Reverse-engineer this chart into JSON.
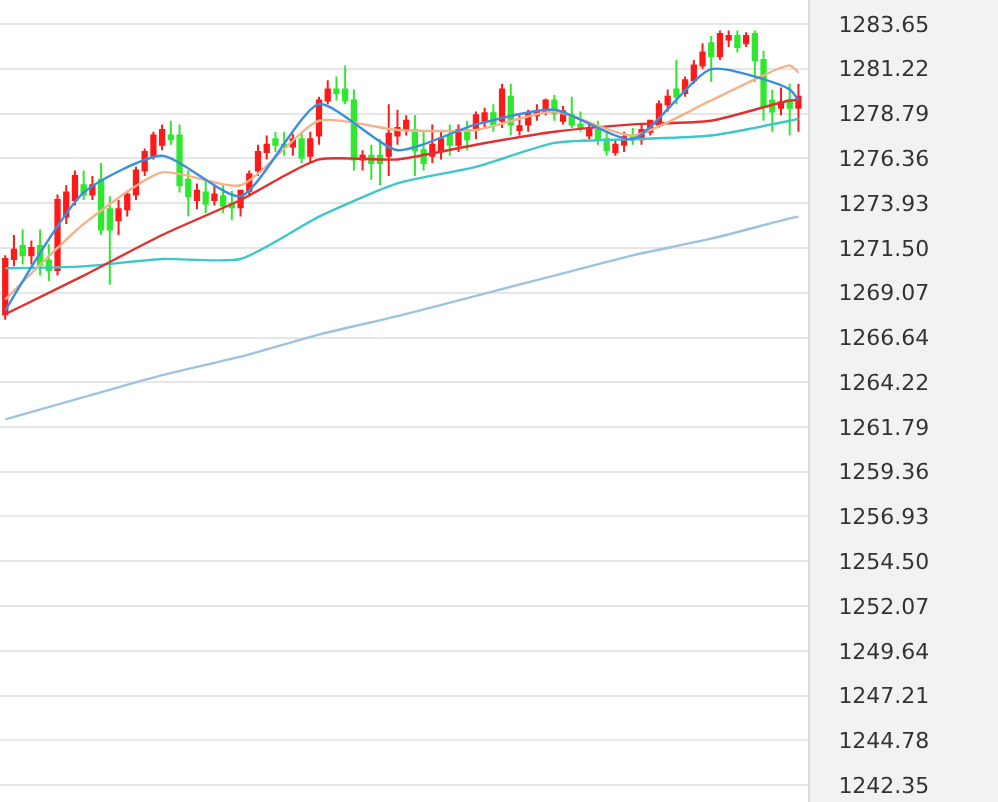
{
  "chart_data": {
    "type": "candlestick",
    "categories": [
      null,
      null,
      null,
      null,
      null,
      null,
      null,
      null,
      null,
      null,
      null,
      null,
      null,
      null,
      null,
      null,
      null,
      null,
      null,
      null,
      null,
      null,
      null,
      null,
      null,
      null,
      null,
      null,
      null,
      null,
      null,
      null,
      null,
      null,
      null,
      null,
      null,
      null,
      null,
      null,
      null,
      null,
      null,
      null,
      null,
      null,
      null,
      null,
      null,
      null,
      null,
      null,
      null,
      null,
      null,
      null,
      null,
      null,
      null,
      null,
      null,
      null,
      null,
      null,
      null,
      null,
      null,
      null,
      null,
      null,
      null,
      null,
      null,
      null,
      null,
      null,
      null,
      null,
      null,
      null,
      null,
      null,
      null,
      null,
      null,
      null,
      null,
      null,
      null,
      null,
      null,
      null
    ],
    "ohlc": [
      [
        1267.9,
        1271.1,
        1267.6,
        1270.9
      ],
      [
        1270.9,
        1272.2,
        1270.5,
        1271.4
      ],
      [
        1271.6,
        1272.5,
        1270.6,
        1271.1
      ],
      [
        1271.1,
        1271.9,
        1270.6,
        1271.5
      ],
      [
        1271.6,
        1272.5,
        1270.0,
        1270.6
      ],
      [
        1270.8,
        1271.7,
        1269.7,
        1270.3
      ],
      [
        1270.3,
        1274.4,
        1270.0,
        1274.1
      ],
      [
        1273.2,
        1274.9,
        1272.8,
        1274.5
      ],
      [
        1274.1,
        1275.7,
        1273.8,
        1275.4
      ],
      [
        1274.9,
        1275.7,
        1274.1,
        1274.4
      ],
      [
        1274.4,
        1275.4,
        1274.1,
        1274.9
      ],
      [
        1275.2,
        1276.1,
        1272.2,
        1272.5
      ],
      [
        1273.6,
        1274.3,
        1269.5,
        1272.5
      ],
      [
        1273.0,
        1274.1,
        1272.2,
        1273.6
      ],
      [
        1273.6,
        1274.6,
        1273.2,
        1274.4
      ],
      [
        1274.4,
        1275.9,
        1274.1,
        1275.7
      ],
      [
        1275.7,
        1276.9,
        1275.4,
        1276.7
      ],
      [
        1276.5,
        1277.8,
        1276.3,
        1277.6
      ],
      [
        1277.1,
        1278.2,
        1276.8,
        1277.9
      ],
      [
        1277.6,
        1278.4,
        1277.1,
        1277.4
      ],
      [
        1277.6,
        1278.2,
        1274.5,
        1274.9
      ],
      [
        1275.2,
        1275.7,
        1273.2,
        1274.3
      ],
      [
        1274.1,
        1275.0,
        1273.6,
        1274.6
      ],
      [
        1274.5,
        1275.2,
        1273.4,
        1273.9
      ],
      [
        1274.1,
        1274.9,
        1273.8,
        1274.4
      ],
      [
        1274.3,
        1274.9,
        1273.4,
        1273.8
      ],
      [
        1273.9,
        1274.6,
        1273.0,
        1273.7
      ],
      [
        1273.7,
        1274.6,
        1273.2,
        1274.6
      ],
      [
        1274.6,
        1275.7,
        1274.3,
        1275.5
      ],
      [
        1275.7,
        1277.1,
        1275.4,
        1276.7
      ],
      [
        1276.7,
        1277.6,
        1276.3,
        1277.1
      ],
      [
        1277.4,
        1277.8,
        1276.7,
        1277.1
      ],
      [
        1277.1,
        1277.8,
        1276.5,
        1277.0
      ],
      [
        1277.0,
        1277.7,
        1276.5,
        1277.4
      ],
      [
        1277.4,
        1277.8,
        1276.1,
        1276.4
      ],
      [
        1276.5,
        1277.8,
        1276.1,
        1277.4
      ],
      [
        1277.6,
        1279.7,
        1277.1,
        1279.5
      ],
      [
        1279.5,
        1280.6,
        1279.3,
        1280.1
      ],
      [
        1280.1,
        1280.8,
        1279.5,
        1279.9
      ],
      [
        1280.1,
        1281.4,
        1279.3,
        1279.5
      ],
      [
        1279.5,
        1280.1,
        1275.7,
        1276.3
      ],
      [
        1276.3,
        1276.8,
        1275.7,
        1276.5
      ],
      [
        1276.5,
        1277.1,
        1275.2,
        1276.1
      ],
      [
        1276.5,
        1277.4,
        1274.9,
        1276.1
      ],
      [
        1276.5,
        1279.3,
        1275.4,
        1277.7
      ],
      [
        1277.6,
        1279.0,
        1277.1,
        1278.0
      ],
      [
        1277.9,
        1278.7,
        1277.6,
        1278.4
      ],
      [
        1277.9,
        1278.7,
        1275.4,
        1276.8
      ],
      [
        1276.8,
        1277.8,
        1275.7,
        1276.1
      ],
      [
        1276.5,
        1278.2,
        1276.1,
        1277.1
      ],
      [
        1276.8,
        1277.9,
        1276.3,
        1277.4
      ],
      [
        1277.6,
        1278.2,
        1276.5,
        1277.1
      ],
      [
        1277.1,
        1278.2,
        1276.7,
        1277.9
      ],
      [
        1277.9,
        1278.4,
        1276.8,
        1277.4
      ],
      [
        1277.9,
        1278.9,
        1277.4,
        1278.7
      ],
      [
        1278.4,
        1279.1,
        1278.0,
        1278.8
      ],
      [
        1278.8,
        1279.3,
        1277.8,
        1278.2
      ],
      [
        1278.4,
        1280.4,
        1278.0,
        1280.1
      ],
      [
        1279.7,
        1280.4,
        1277.6,
        1278.2
      ],
      [
        1277.9,
        1278.7,
        1277.6,
        1278.1
      ],
      [
        1278.2,
        1279.0,
        1277.8,
        1278.8
      ],
      [
        1278.7,
        1279.3,
        1278.4,
        1278.9
      ],
      [
        1278.9,
        1279.6,
        1278.7,
        1279.5
      ],
      [
        1279.5,
        1279.8,
        1278.4,
        1278.8
      ],
      [
        1278.4,
        1279.2,
        1278.2,
        1278.9
      ],
      [
        1278.7,
        1279.7,
        1278.0,
        1278.2
      ],
      [
        1278.2,
        1278.9,
        1277.8,
        1278.0
      ],
      [
        1277.6,
        1278.2,
        1277.4,
        1278.0
      ],
      [
        1277.9,
        1278.4,
        1277.1,
        1277.4
      ],
      [
        1277.4,
        1277.8,
        1276.5,
        1276.8
      ],
      [
        1276.7,
        1277.4,
        1276.5,
        1277.1
      ],
      [
        1277.1,
        1277.8,
        1276.7,
        1277.5
      ],
      [
        1277.6,
        1278.0,
        1277.1,
        1277.4
      ],
      [
        1277.4,
        1278.2,
        1277.1,
        1277.9
      ],
      [
        1277.8,
        1278.4,
        1277.6,
        1278.4
      ],
      [
        1278.2,
        1279.5,
        1278.0,
        1279.3
      ],
      [
        1279.3,
        1280.1,
        1278.9,
        1279.7
      ],
      [
        1280.1,
        1281.7,
        1279.3,
        1279.7
      ],
      [
        1279.9,
        1280.8,
        1279.7,
        1280.6
      ],
      [
        1280.6,
        1281.7,
        1280.4,
        1281.4
      ],
      [
        1281.4,
        1282.6,
        1281.2,
        1282.1
      ],
      [
        1282.6,
        1283.0,
        1280.5,
        1281.9
      ],
      [
        1281.9,
        1283.3,
        1281.7,
        1283.1
      ],
      [
        1282.8,
        1283.3,
        1282.4,
        1283.0
      ],
      [
        1283.0,
        1283.3,
        1282.1,
        1282.4
      ],
      [
        1282.6,
        1283.2,
        1282.4,
        1283.0
      ],
      [
        1283.1,
        1283.3,
        1280.5,
        1281.7
      ],
      [
        1281.7,
        1282.2,
        1278.4,
        1279.2
      ],
      [
        1279.5,
        1280.1,
        1277.8,
        1278.9
      ],
      [
        1279.1,
        1280.2,
        1278.7,
        1279.4
      ],
      [
        1279.5,
        1280.4,
        1277.6,
        1279.1
      ],
      [
        1279.1,
        1280.4,
        1277.8,
        1279.7
      ]
    ],
    "colors": [
      "#ff1a1a",
      "#ff1a1a",
      "#2ee82e",
      "#ff1a1a",
      "#2ee82e",
      "#2ee82e",
      "#ff1a1a",
      "#ff1a1a",
      "#ff1a1a",
      "#2ee82e",
      "#ff1a1a",
      "#2ee82e",
      "#2ee82e",
      "#ff1a1a",
      "#ff1a1a",
      "#ff1a1a",
      "#ff1a1a",
      "#ff1a1a",
      "#ff1a1a",
      "#2ee82e",
      "#2ee82e",
      "#2ee82e",
      "#ff1a1a",
      "#2ee82e",
      "#ff1a1a",
      "#2ee82e",
      "#2ee82e",
      "#ff1a1a",
      "#ff1a1a",
      "#ff1a1a",
      "#ff1a1a",
      "#2ee82e",
      "#2ee82e",
      "#ff1a1a",
      "#2ee82e",
      "#ff1a1a",
      "#ff1a1a",
      "#ff1a1a",
      "#2ee82e",
      "#2ee82e",
      "#2ee82e",
      "#ff1a1a",
      "#2ee82e",
      "#2ee82e",
      "#ff1a1a",
      "#ff1a1a",
      "#ff1a1a",
      "#2ee82e",
      "#2ee82e",
      "#ff1a1a",
      "#ff1a1a",
      "#2ee82e",
      "#ff1a1a",
      "#2ee82e",
      "#ff1a1a",
      "#ff1a1a",
      "#2ee82e",
      "#ff1a1a",
      "#2ee82e",
      "#ff1a1a",
      "#ff1a1a",
      "#ff1a1a",
      "#ff1a1a",
      "#2ee82e",
      "#ff1a1a",
      "#2ee82e",
      "#2ee82e",
      "#ff1a1a",
      "#2ee82e",
      "#2ee82e",
      "#ff1a1a",
      "#ff1a1a",
      "#2ee82e",
      "#ff1a1a",
      "#ff1a1a",
      "#ff1a1a",
      "#ff1a1a",
      "#2ee82e",
      "#ff1a1a",
      "#ff1a1a",
      "#ff1a1a",
      "#2ee82e",
      "#ff1a1a",
      "#ff1a1a",
      "#2ee82e",
      "#ff1a1a",
      "#2ee82e",
      "#2ee82e",
      "#2ee82e",
      "#ff1a1a",
      "#2ee82e",
      "#ff1a1a"
    ],
    "series": [
      {
        "type": "line",
        "color": "#9cc3e0",
        "values": [
          1262.2,
          null,
          null,
          null,
          null,
          null,
          null,
          null,
          null,
          1263.4,
          null,
          null,
          null,
          null,
          null,
          null,
          null,
          null,
          1264.6,
          null,
          null,
          null,
          null,
          null,
          null,
          null,
          null,
          1265.6,
          null,
          null,
          null,
          null,
          null,
          null,
          null,
          null,
          1266.8,
          null,
          null,
          null,
          null,
          null,
          null,
          null,
          null,
          1267.8,
          null,
          null,
          null,
          null,
          null,
          null,
          null,
          null,
          1268.9,
          null,
          null,
          null,
          null,
          null,
          null,
          null,
          null,
          1270.0,
          null,
          null,
          null,
          null,
          null,
          null,
          null,
          null,
          1271.1,
          null,
          null,
          null,
          null,
          null,
          null,
          null,
          null,
          1272.0,
          null,
          null,
          null,
          null,
          null,
          null,
          null,
          null,
          1273.1,
          1273.2
        ]
      },
      {
        "type": "line",
        "color": "#3cc8c8",
        "values": [
          1270.4,
          null,
          null,
          null,
          null,
          null,
          null,
          null,
          null,
          1270.5,
          null,
          null,
          null,
          null,
          null,
          null,
          null,
          null,
          1270.9,
          null,
          null,
          null,
          null,
          null,
          null,
          null,
          null,
          1270.9,
          null,
          null,
          null,
          null,
          null,
          null,
          null,
          null,
          1273.2,
          null,
          null,
          null,
          null,
          null,
          null,
          null,
          null,
          1275.0,
          null,
          null,
          null,
          null,
          null,
          null,
          null,
          null,
          1275.9,
          null,
          null,
          null,
          null,
          null,
          null,
          null,
          null,
          1277.2,
          null,
          null,
          null,
          null,
          null,
          null,
          null,
          null,
          1277.4,
          null,
          null,
          null,
          null,
          null,
          null,
          null,
          null,
          1277.6,
          null,
          null,
          null,
          null,
          null,
          null,
          null,
          null,
          1278.4,
          1278.5
        ]
      },
      {
        "type": "line",
        "color": "#e03030",
        "values": [
          1267.9,
          null,
          null,
          null,
          null,
          null,
          null,
          null,
          null,
          1270.0,
          null,
          null,
          null,
          null,
          null,
          null,
          null,
          null,
          1272.2,
          null,
          null,
          null,
          null,
          null,
          null,
          null,
          null,
          1274.1,
          null,
          null,
          null,
          null,
          null,
          null,
          null,
          null,
          1276.3,
          null,
          null,
          null,
          null,
          null,
          null,
          null,
          null,
          1276.3,
          null,
          null,
          null,
          null,
          null,
          null,
          null,
          null,
          1277.1,
          null,
          null,
          null,
          null,
          null,
          null,
          null,
          null,
          1277.8,
          null,
          null,
          null,
          null,
          null,
          null,
          null,
          null,
          1278.2,
          null,
          null,
          null,
          null,
          null,
          null,
          null,
          null,
          1278.4,
          null,
          null,
          null,
          null,
          null,
          null,
          null,
          null,
          1279.5,
          1279.5
        ]
      },
      {
        "type": "line",
        "color": "#f0b48c",
        "values": [
          1268.7,
          null,
          null,
          null,
          null,
          null,
          null,
          null,
          null,
          1272.8,
          null,
          null,
          null,
          null,
          null,
          null,
          null,
          null,
          1275.6,
          null,
          null,
          null,
          null,
          null,
          null,
          null,
          null,
          1274.9,
          null,
          null,
          null,
          null,
          null,
          null,
          null,
          null,
          1278.4,
          null,
          null,
          null,
          null,
          null,
          null,
          null,
          null,
          1277.9,
          null,
          null,
          null,
          null,
          null,
          null,
          null,
          null,
          1277.9,
          null,
          null,
          null,
          null,
          null,
          null,
          null,
          null,
          1278.9,
          null,
          null,
          null,
          null,
          null,
          null,
          null,
          null,
          1277.6,
          null,
          null,
          null,
          null,
          null,
          null,
          null,
          null,
          1279.5,
          null,
          null,
          null,
          null,
          null,
          null,
          null,
          null,
          1281.4,
          1281.0
        ]
      },
      {
        "type": "line",
        "color": "#3a8ee0",
        "values": [
          1268.1,
          null,
          null,
          null,
          null,
          null,
          null,
          null,
          null,
          1274.5,
          null,
          null,
          null,
          null,
          null,
          null,
          null,
          null,
          1276.5,
          null,
          null,
          null,
          null,
          null,
          null,
          null,
          null,
          1274.3,
          null,
          null,
          null,
          null,
          null,
          null,
          null,
          null,
          1279.3,
          null,
          null,
          null,
          null,
          null,
          null,
          null,
          null,
          1276.8,
          null,
          null,
          null,
          null,
          null,
          null,
          null,
          null,
          1278.2,
          null,
          null,
          null,
          null,
          null,
          null,
          null,
          null,
          1279.0,
          null,
          null,
          null,
          null,
          null,
          null,
          null,
          null,
          1277.4,
          null,
          null,
          null,
          null,
          null,
          null,
          null,
          null,
          1281.2,
          null,
          null,
          null,
          null,
          null,
          null,
          null,
          null,
          1280.1,
          1279.5
        ]
      }
    ],
    "ylim": [
      1241.44,
      1284.95
    ],
    "yticks": [
      1283.65,
      1281.22,
      1278.79,
      1276.36,
      1273.93,
      {
        "value": 1271.5,
        "label": "1271.50"
      },
      1269.07,
      1266.64,
      1264.22,
      1261.79,
      1259.36,
      1256.93,
      {
        "value": 1254.5,
        "label": "1254.50"
      },
      1252.07,
      1249.64,
      1247.21,
      1244.78,
      1242.35
    ],
    "grid": "y",
    "tick_labels": "y"
  }
}
